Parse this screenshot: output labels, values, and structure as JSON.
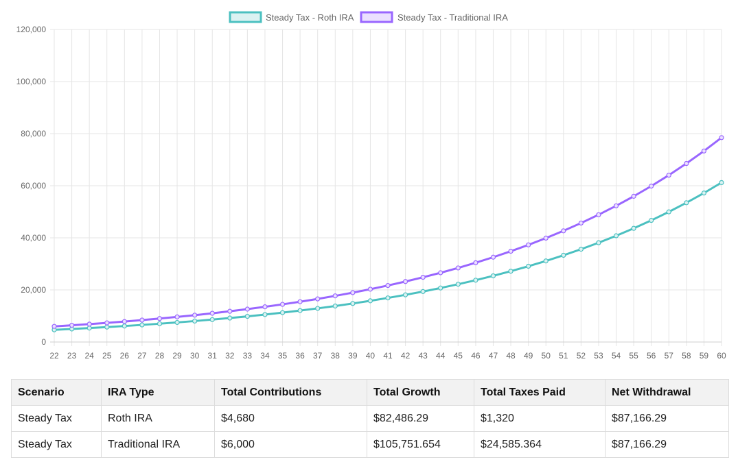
{
  "chart_data": {
    "type": "line",
    "x": [
      22,
      23,
      24,
      25,
      26,
      27,
      28,
      29,
      30,
      31,
      32,
      33,
      34,
      35,
      36,
      37,
      38,
      39,
      40,
      41,
      42,
      43,
      44,
      45,
      46,
      47,
      48,
      49,
      50,
      51,
      52,
      53,
      54,
      55,
      56,
      57,
      58,
      59,
      60
    ],
    "ylim": [
      0,
      120000
    ],
    "yticks": [
      0,
      20000,
      40000,
      60000,
      80000,
      100000,
      120000
    ],
    "ytick_labels": [
      "0",
      "20,000",
      "40,000",
      "60,000",
      "80,000",
      "100,000",
      "120,000"
    ],
    "grid": true,
    "legend_position": "top",
    "series": [
      {
        "name": "Steady Tax - Roth IRA",
        "color": "#4bc0c0",
        "fill": "#dbf2f2",
        "values": [
          4680,
          5008,
          5358,
          5733,
          6134,
          6564,
          7023,
          7515,
          8041,
          8604,
          9206,
          9851,
          10540,
          11278,
          12068,
          12912,
          13816,
          14783,
          15818,
          16926,
          18110,
          19378,
          20735,
          22186,
          23739,
          25401,
          27179,
          29082,
          31117,
          33295,
          35626,
          38120,
          40788,
          43643,
          46698,
          49967,
          53465,
          57207,
          61212
        ]
      },
      {
        "name": "Steady Tax - Traditional IRA",
        "color": "#9966ff",
        "fill": "#ebe0ff",
        "values": [
          6000,
          6420,
          6869,
          7350,
          7865,
          8415,
          9004,
          9635,
          10309,
          11031,
          11803,
          12629,
          13513,
          14459,
          15471,
          16554,
          17713,
          18953,
          20279,
          21699,
          23218,
          24843,
          26582,
          28443,
          30434,
          32565,
          34844,
          37283,
          39893,
          42686,
          45674,
          48871,
          52292,
          55952,
          59869,
          64060,
          68544,
          73342,
          78476
        ]
      }
    ]
  },
  "table": {
    "headers": [
      "Scenario",
      "IRA Type",
      "Total Contributions",
      "Total Growth",
      "Total Taxes Paid",
      "Net Withdrawal"
    ],
    "rows": [
      [
        "Steady Tax",
        "Roth IRA",
        "$4,680",
        "$82,486.29",
        "$1,320",
        "$87,166.29"
      ],
      [
        "Steady Tax",
        "Traditional IRA",
        "$6,000",
        "$105,751.654",
        "$24,585.364",
        "$87,166.29"
      ]
    ]
  }
}
